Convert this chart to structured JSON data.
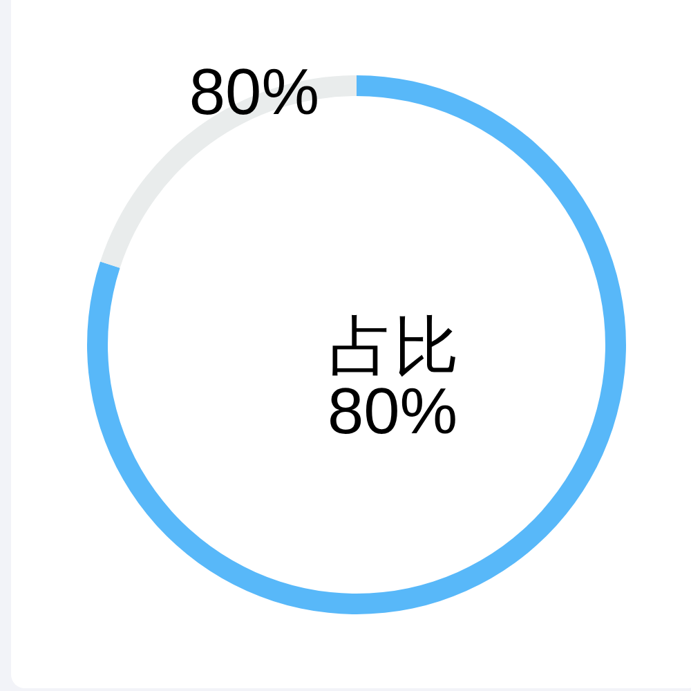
{
  "chart_data": {
    "type": "donut",
    "title": "占比",
    "subtitle": "80%",
    "categories": [
      null,
      null
    ],
    "values": [
      80,
      20
    ],
    "colors": [
      "#58b8f9",
      "#e9ecec"
    ],
    "annotations": [
      "80%"
    ]
  }
}
